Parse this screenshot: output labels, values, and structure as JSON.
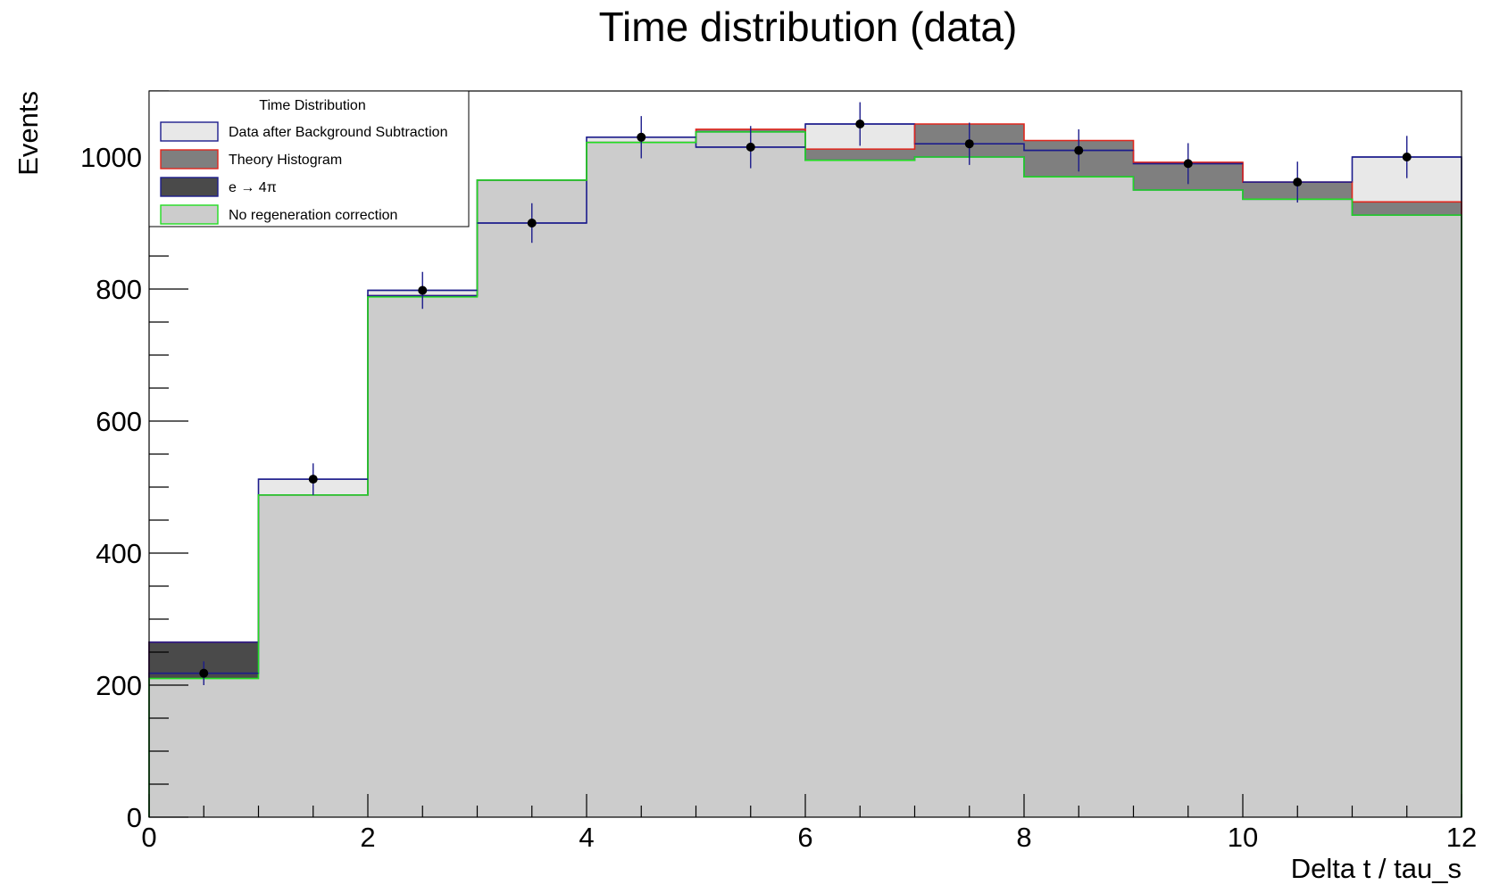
{
  "chart_data": {
    "type": "histogram",
    "title": "Time distribution (data)",
    "xlabel": "Delta t / tau_s",
    "ylabel": "Events",
    "xlim": [
      0,
      12
    ],
    "ylim": [
      0,
      1100
    ],
    "x_ticks": [
      0,
      2,
      4,
      6,
      8,
      10,
      12
    ],
    "y_ticks": [
      0,
      200,
      400,
      600,
      800,
      1000
    ],
    "bin_edges": [
      0,
      1,
      2,
      3,
      4,
      5,
      6,
      7,
      8,
      9,
      10,
      11,
      12
    ],
    "grid": false,
    "legend": {
      "title": "Time Distribution",
      "position": "top-left",
      "entries": [
        {
          "label": "Data after Background Subtraction",
          "fill": "#e8e8e8",
          "edge": "#1c1c8c"
        },
        {
          "label": "Theory Histogram",
          "fill": "#7f7f7f",
          "edge": "#e0261c"
        },
        {
          "label": "e → 4π",
          "fill": "#4a4a4a",
          "edge": "#1c1c8c"
        },
        {
          "label": "No regeneration correction",
          "fill": "#cccccc",
          "edge": "#22dd22"
        }
      ]
    },
    "series": [
      {
        "name": "Data after Background Subtraction",
        "style": "filled-step",
        "fill": "#e8e8e8",
        "edge": "#1c1c8c",
        "values": [
          218,
          512,
          798,
          900,
          1030,
          1015,
          1050,
          1020,
          1010,
          990,
          962,
          1000
        ],
        "errors": [
          18,
          24,
          28,
          30,
          32,
          32,
          33,
          32,
          32,
          31,
          31,
          32
        ]
      },
      {
        "name": "Theory Histogram",
        "style": "filled-step",
        "fill": "#7f7f7f",
        "edge": "#e0261c",
        "values": [
          265,
          488,
          790,
          965,
          1022,
          1042,
          1012,
          1050,
          1025,
          992,
          962,
          932
        ]
      },
      {
        "name": "e → 4π",
        "style": "filled-step",
        "fill": "#4a4a4a",
        "edge": "#1c1c8c",
        "values": [
          265,
          488,
          790,
          965,
          1022,
          1038,
          995,
          1000,
          970,
          950,
          936,
          912
        ]
      },
      {
        "name": "No regeneration correction",
        "style": "filled-step",
        "fill": "#cccccc",
        "edge": "#22dd22",
        "values": [
          210,
          488,
          788,
          965,
          1022,
          1038,
          995,
          1000,
          970,
          950,
          936,
          912
        ]
      }
    ],
    "data_points": {
      "x": [
        0.5,
        1.5,
        2.5,
        3.5,
        4.5,
        5.5,
        6.5,
        7.5,
        8.5,
        9.5,
        10.5,
        11.5
      ],
      "y": [
        218,
        512,
        798,
        900,
        1030,
        1015,
        1050,
        1020,
        1010,
        990,
        962,
        1000
      ],
      "yerr": [
        18,
        24,
        28,
        30,
        32,
        32,
        33,
        32,
        32,
        31,
        31,
        32
      ],
      "xerr": 0.5,
      "marker_color": "#000000",
      "error_color": "#1c1c8c"
    }
  }
}
